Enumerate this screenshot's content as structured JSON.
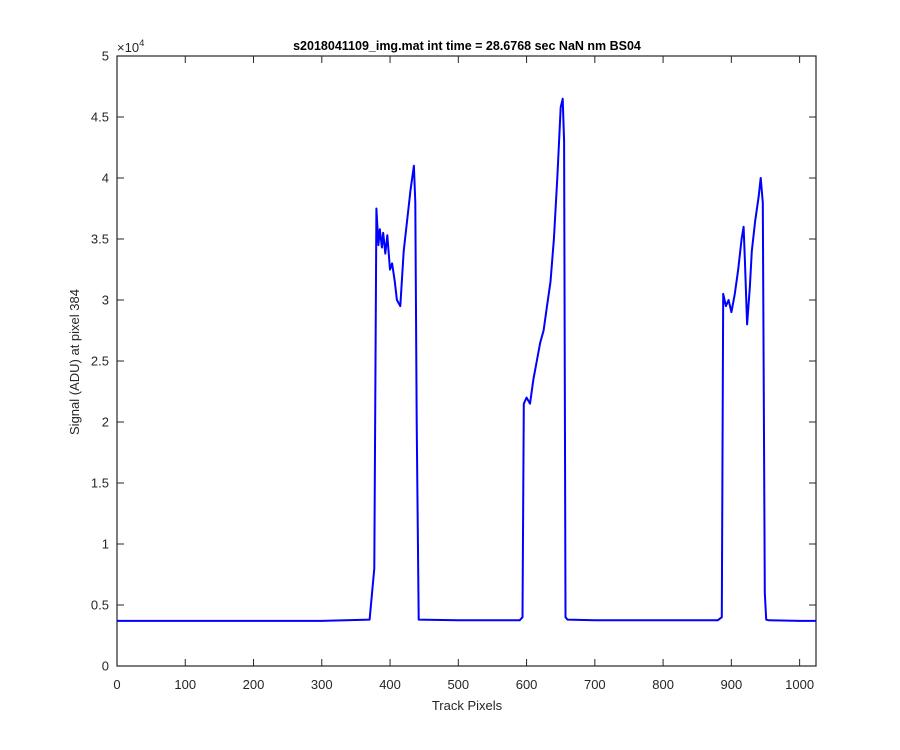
{
  "chart_data": {
    "type": "line",
    "title": "s2018041109_img.mat int time = 28.6768 sec  NaN nm BS04",
    "xlabel": "Track Pixels",
    "ylabel": "Signal (ADU) at pixel 384",
    "y_exponent": {
      "base": "×10",
      "power": "4"
    },
    "xlim": [
      0,
      1024
    ],
    "ylim": [
      0,
      50000
    ],
    "x_ticks": [
      0,
      100,
      200,
      300,
      400,
      500,
      600,
      700,
      800,
      900,
      1000
    ],
    "x_tick_labels": [
      "0",
      "100",
      "200",
      "300",
      "400",
      "500",
      "600",
      "700",
      "800",
      "900",
      "1000"
    ],
    "y_ticks": [
      0,
      5000,
      10000,
      15000,
      20000,
      25000,
      30000,
      35000,
      40000,
      45000,
      50000
    ],
    "y_tick_labels": [
      "0",
      "0.5",
      "1",
      "1.5",
      "2",
      "2.5",
      "3",
      "3.5",
      "4",
      "4.5",
      "5"
    ],
    "grid": false,
    "line_color": "#0000ff",
    "series": [
      {
        "x": [
          0,
          100,
          200,
          300,
          370,
          377,
          380,
          383,
          385,
          388,
          390,
          393,
          396,
          400,
          403,
          407,
          410,
          415,
          420,
          425,
          430,
          435,
          437,
          439,
          442,
          500,
          590,
          594,
          596,
          600,
          605,
          610,
          615,
          620,
          625,
          630,
          635,
          640,
          645,
          650,
          653,
          655,
          657,
          660,
          700,
          800,
          880,
          886,
          888,
          892,
          896,
          900,
          905,
          910,
          915,
          918,
          920,
          923,
          927,
          930,
          935,
          940,
          943,
          946,
          949,
          951,
          955,
          1000,
          1024
        ],
        "y": [
          3700,
          3700,
          3700,
          3700,
          3800,
          8000,
          37500,
          34500,
          35800,
          34300,
          35500,
          33800,
          35300,
          32500,
          33000,
          31500,
          30000,
          29500,
          34000,
          36500,
          39000,
          41000,
          38000,
          20000,
          3800,
          3750,
          3750,
          4000,
          21500,
          22000,
          21500,
          23500,
          25000,
          26500,
          27500,
          29500,
          31500,
          35000,
          40000,
          45800,
          46500,
          43000,
          4000,
          3800,
          3750,
          3750,
          3750,
          4000,
          30500,
          29500,
          30000,
          29000,
          30500,
          32500,
          35000,
          36000,
          33000,
          28000,
          31000,
          34000,
          36500,
          38500,
          40000,
          38000,
          6000,
          3800,
          3750,
          3700,
          3700
        ]
      }
    ]
  }
}
